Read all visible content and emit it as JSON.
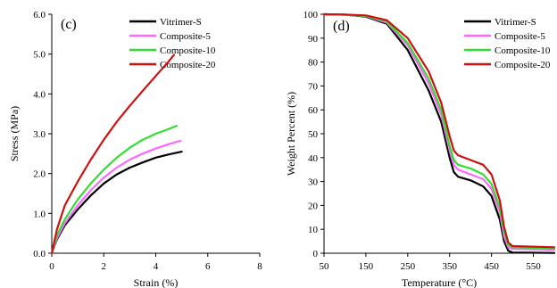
{
  "colors": {
    "Vitrimer-S": "#000000",
    "Composite-5": "#ff66ff",
    "Composite-10": "#33dd33",
    "Composite-20": "#cc1111"
  },
  "chart_data": [
    {
      "type": "line",
      "panel_label": "(c)",
      "xlabel": "Strain (%)",
      "ylabel": "Stress (MPa)",
      "xlim": [
        0,
        8
      ],
      "ylim": [
        0,
        6
      ],
      "xticks": [
        0,
        2,
        4,
        6,
        8
      ],
      "yticks": [
        0.0,
        1.0,
        2.0,
        3.0,
        4.0,
        5.0,
        6.0
      ],
      "ytick_labels": [
        "0.0",
        "1.0",
        "2.0",
        "3.0",
        "4.0",
        "5.0",
        "6.0"
      ],
      "legend_position": "top-right",
      "series": [
        {
          "name": "Vitrimer-S",
          "x": [
            0,
            0.2,
            0.5,
            1.0,
            1.5,
            2.0,
            2.5,
            3.0,
            3.5,
            4.0,
            4.5,
            5.0
          ],
          "y": [
            0,
            0.35,
            0.7,
            1.1,
            1.45,
            1.75,
            1.98,
            2.15,
            2.28,
            2.4,
            2.48,
            2.55
          ]
        },
        {
          "name": "Composite-5",
          "x": [
            0,
            0.2,
            0.5,
            1.0,
            1.5,
            2.0,
            2.5,
            3.0,
            3.5,
            4.0,
            4.5,
            4.95
          ],
          "y": [
            0,
            0.38,
            0.75,
            1.2,
            1.58,
            1.9,
            2.15,
            2.35,
            2.5,
            2.63,
            2.74,
            2.82
          ]
        },
        {
          "name": "Composite-10",
          "x": [
            0,
            0.2,
            0.5,
            1.0,
            1.5,
            2.0,
            2.5,
            3.0,
            3.5,
            4.0,
            4.5,
            4.8
          ],
          "y": [
            0,
            0.45,
            0.85,
            1.35,
            1.75,
            2.1,
            2.4,
            2.65,
            2.85,
            3.0,
            3.12,
            3.2
          ]
        },
        {
          "name": "Composite-20",
          "x": [
            0,
            0.2,
            0.5,
            1.0,
            1.5,
            2.0,
            2.5,
            3.0,
            3.5,
            4.0,
            4.5,
            4.7
          ],
          "y": [
            0,
            0.6,
            1.2,
            1.8,
            2.35,
            2.85,
            3.3,
            3.7,
            4.08,
            4.45,
            4.82,
            4.98
          ]
        }
      ]
    },
    {
      "type": "line",
      "panel_label": "(d)",
      "xlabel": "Temperature (°C)",
      "ylabel": "Weight Percent (%)",
      "xlim": [
        50,
        600
      ],
      "ylim": [
        0,
        100
      ],
      "xticks": [
        50,
        150,
        250,
        350,
        450,
        550
      ],
      "yticks": [
        0,
        10,
        20,
        30,
        40,
        50,
        60,
        70,
        80,
        90,
        100
      ],
      "legend_position": "top-right",
      "series": [
        {
          "name": "Vitrimer-S",
          "x": [
            50,
            100,
            150,
            200,
            250,
            300,
            330,
            350,
            360,
            370,
            400,
            430,
            450,
            470,
            480,
            490,
            500,
            600
          ],
          "y": [
            100,
            99.8,
            99,
            96,
            85,
            68,
            55,
            40,
            34,
            32,
            30.5,
            28,
            24,
            14,
            5,
            1,
            0.3,
            0.1
          ]
        },
        {
          "name": "Composite-5",
          "x": [
            50,
            100,
            150,
            200,
            250,
            300,
            330,
            350,
            360,
            370,
            400,
            430,
            450,
            470,
            480,
            490,
            500,
            600
          ],
          "y": [
            100,
            99.8,
            99.2,
            96.5,
            87,
            71,
            58,
            43,
            37,
            35,
            33,
            31,
            27,
            17,
            7,
            2.5,
            1.8,
            1.5
          ]
        },
        {
          "name": "Composite-10",
          "x": [
            50,
            100,
            150,
            200,
            250,
            300,
            330,
            350,
            360,
            370,
            400,
            430,
            450,
            470,
            480,
            490,
            500,
            600
          ],
          "y": [
            100,
            99.8,
            99.3,
            97,
            88,
            73,
            60,
            45,
            39,
            37,
            35.5,
            33,
            29,
            19,
            9,
            3.5,
            2.5,
            2
          ]
        },
        {
          "name": "Composite-20",
          "x": [
            50,
            100,
            150,
            200,
            250,
            300,
            330,
            350,
            360,
            370,
            400,
            430,
            450,
            470,
            480,
            490,
            500,
            600
          ],
          "y": [
            100,
            99.9,
            99.5,
            97.5,
            90,
            76,
            63,
            49,
            43,
            41,
            39,
            37,
            33,
            22,
            11,
            4.5,
            3,
            2.5
          ]
        }
      ]
    }
  ]
}
